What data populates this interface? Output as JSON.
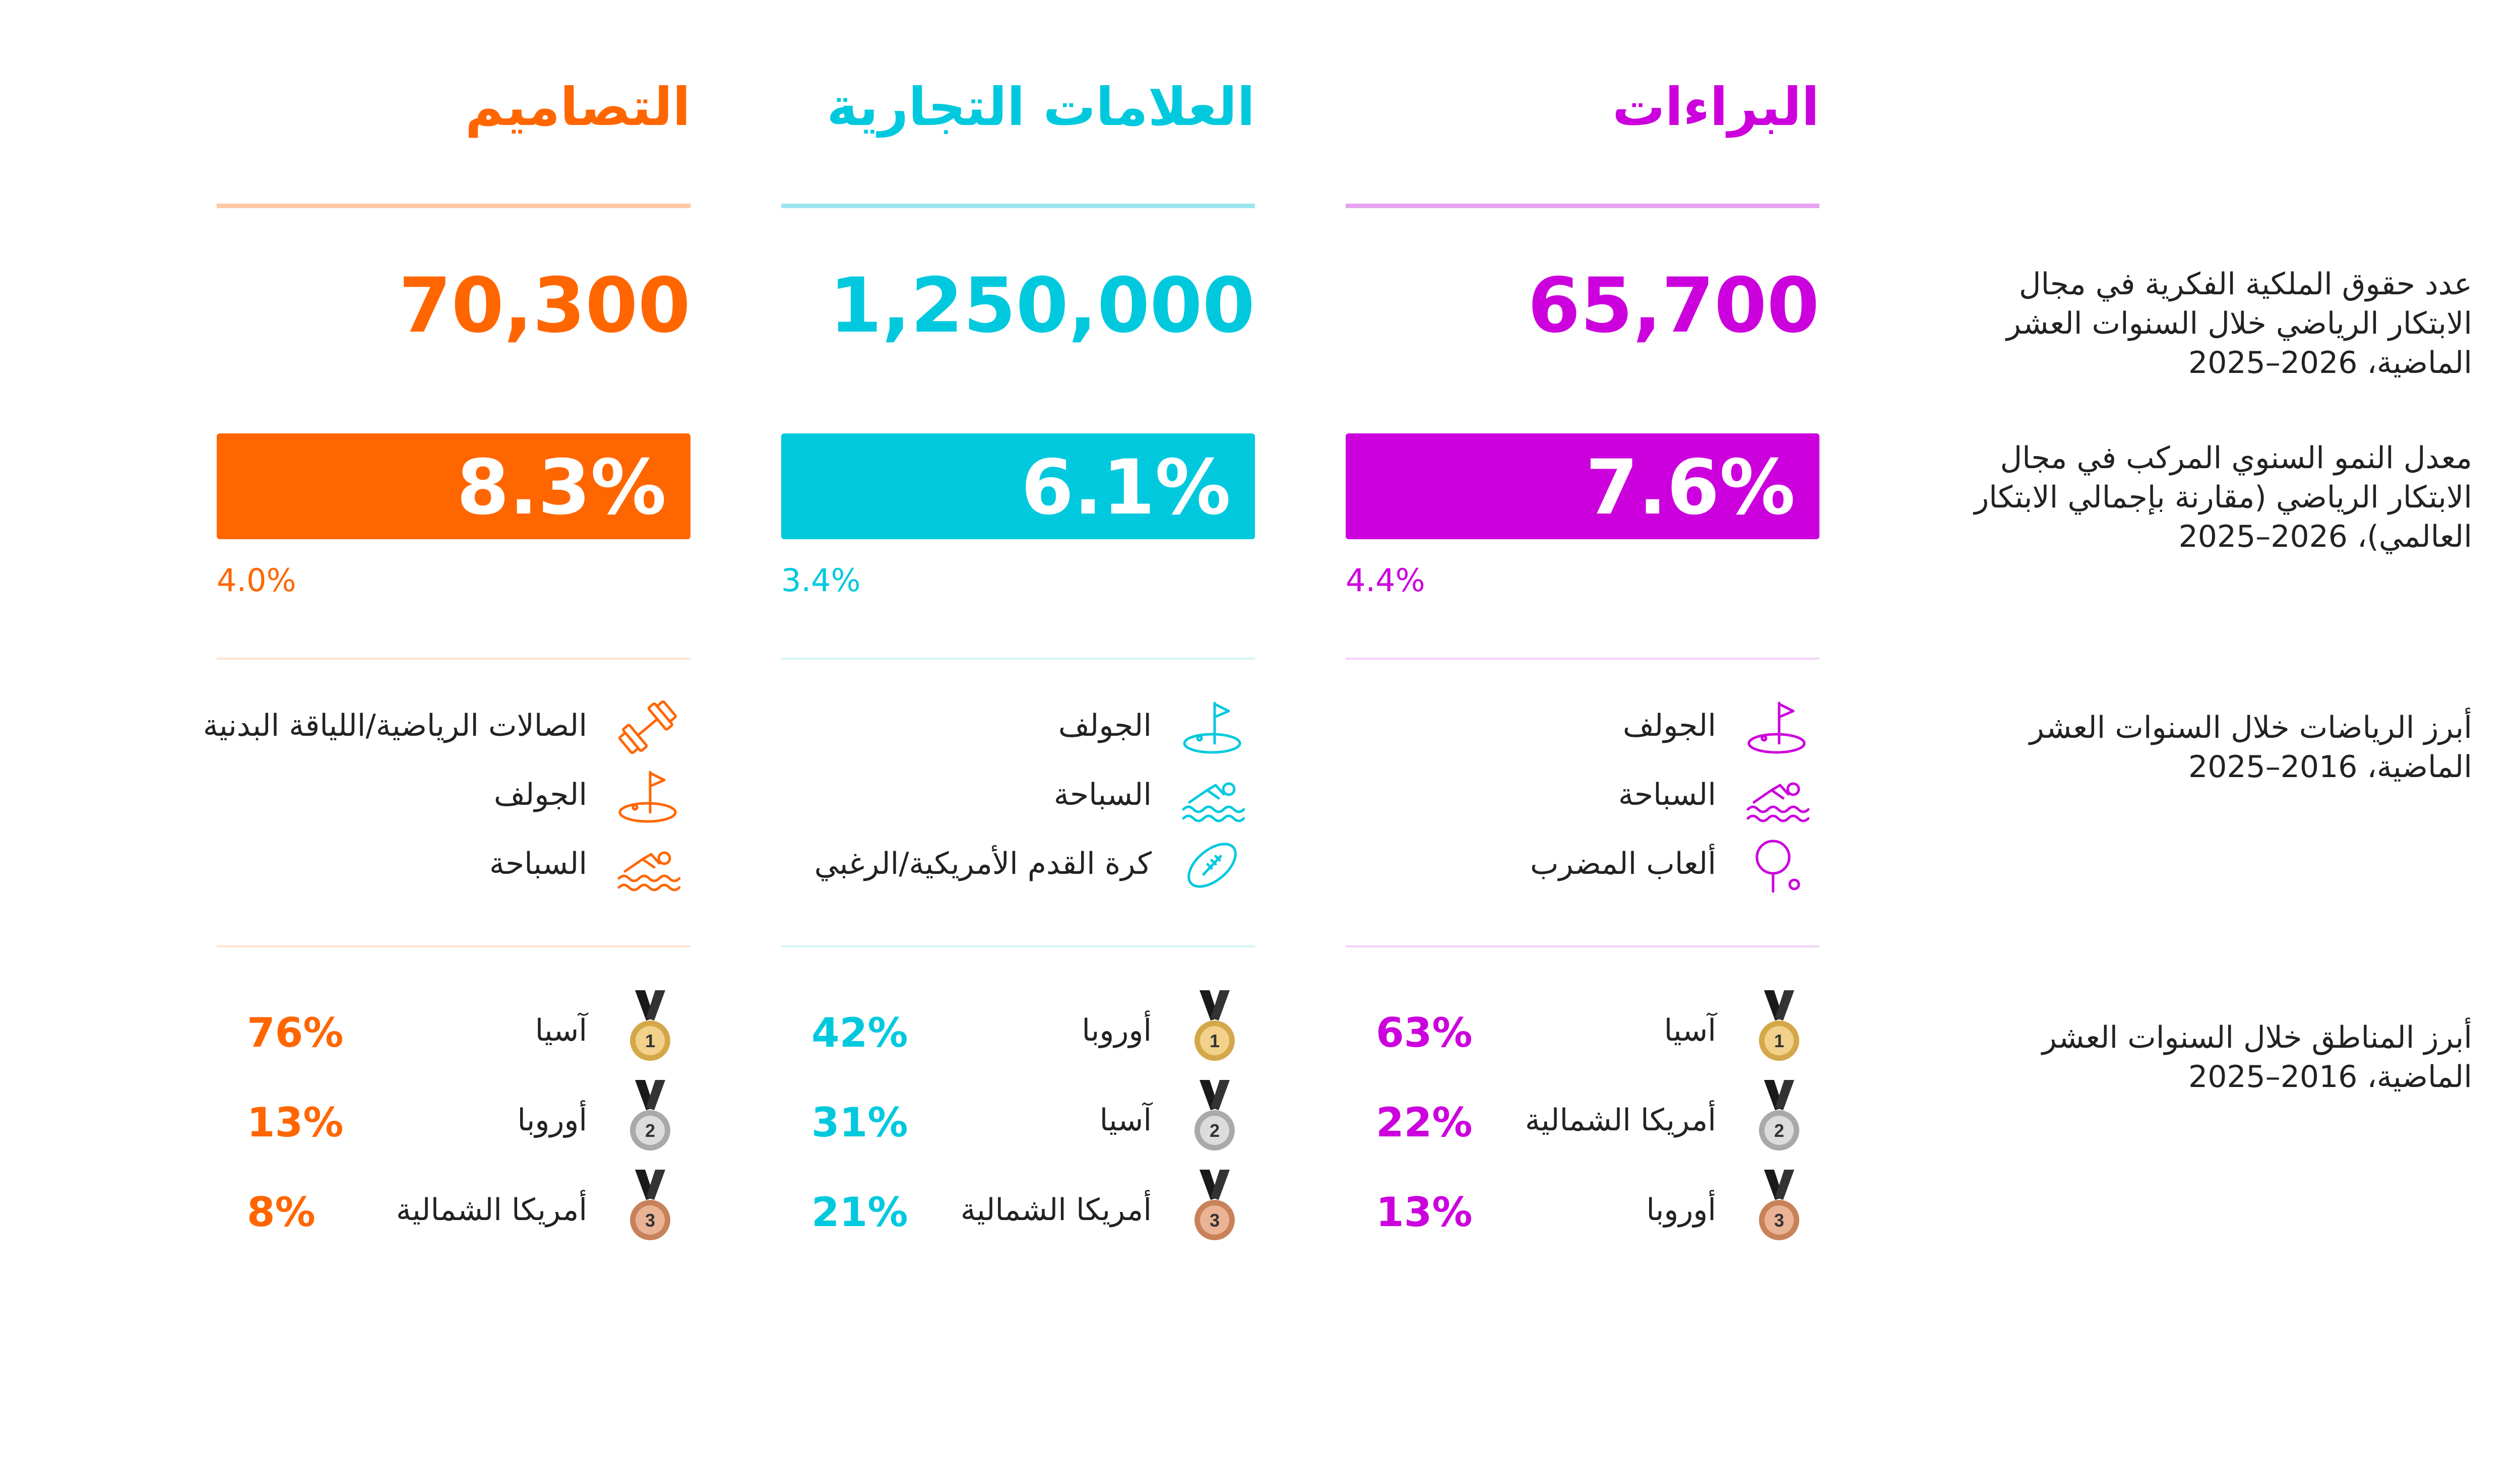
{
  "row_labels": {
    "count": "عدد حقوق الملكية الفكرية في مجال الابتكار الرياضي خلال السنوات العشر الماضية، 2026–2025",
    "cagr": "معدل النمو السنوي المركب في مجال الابتكار الرياضي (مقارنة بإجمالي الابتكار العالمي)، 2026–2025",
    "sports": "أبرز الرياضات خلال السنوات العشر الماضية، 2016–2025",
    "regions": "أبرز المناطق خلال السنوات العشر الماضية، 2016–2025"
  },
  "colors": {
    "patents": "#cc00dd",
    "trademarks": "#00c9de",
    "designs": "#ff6600"
  },
  "columns": {
    "patents": {
      "title": "البراءات",
      "count": "65,700",
      "cagr": "7.6%",
      "global_cagr": "4.4%",
      "sports": [
        {
          "icon": "golf-icon",
          "label": "الجولف"
        },
        {
          "icon": "swimming-icon",
          "label": "السباحة"
        },
        {
          "icon": "racket-sports-icon",
          "label": "ألعاب المضرب"
        }
      ],
      "regions": [
        {
          "rank": "1",
          "name": "آسيا",
          "share": "63%"
        },
        {
          "rank": "2",
          "name": "أمريكا الشمالية",
          "share": "22%"
        },
        {
          "rank": "3",
          "name": "أوروبا",
          "share": "13%"
        }
      ]
    },
    "trademarks": {
      "title": "العلامات التجارية",
      "count": "1,250,000",
      "cagr": "6.1%",
      "global_cagr": "3.4%",
      "sports": [
        {
          "icon": "golf-icon",
          "label": "الجولف"
        },
        {
          "icon": "swimming-icon",
          "label": "السباحة"
        },
        {
          "icon": "american-football-icon",
          "label": "كرة القدم الأمريكية/الرغبي"
        }
      ],
      "regions": [
        {
          "rank": "1",
          "name": "أوروبا",
          "share": "42%"
        },
        {
          "rank": "2",
          "name": "آسيا",
          "share": "31%"
        },
        {
          "rank": "3",
          "name": "أمريكا الشمالية",
          "share": "21%"
        }
      ]
    },
    "designs": {
      "title": "التصاميم",
      "count": "70,300",
      "cagr": "8.3%",
      "global_cagr": "4.0%",
      "sports": [
        {
          "icon": "dumbbell-icon",
          "label": "الصالات الرياضية/اللياقة البدنية"
        },
        {
          "icon": "golf-icon",
          "label": "الجولف"
        },
        {
          "icon": "swimming-icon",
          "label": "السباحة"
        }
      ],
      "regions": [
        {
          "rank": "1",
          "name": "آسيا",
          "share": "76%"
        },
        {
          "rank": "2",
          "name": "أوروبا",
          "share": "13%"
        },
        {
          "rank": "3",
          "name": "أمريكا الشمالية",
          "share": "8%"
        }
      ]
    }
  }
}
